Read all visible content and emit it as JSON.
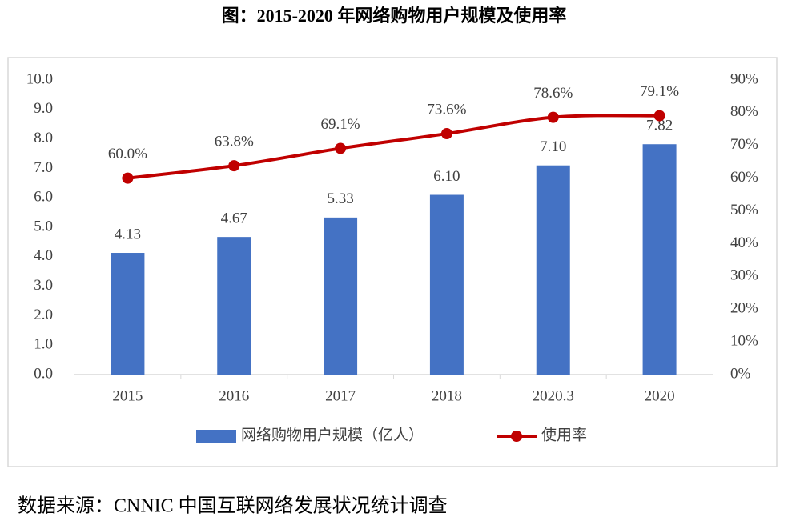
{
  "chart_data": {
    "type": "bar-line",
    "title": "图：2015-2020 年网络购物用户规模及使用率",
    "source": "数据来源：CNNIC 中国互联网络发展状况统计调查",
    "categories": [
      "2015",
      "2016",
      "2017",
      "2018",
      "2020.3",
      "2020"
    ],
    "series": [
      {
        "name": "网络购物用户规模（亿人）",
        "type": "bar",
        "color": "#4472c4",
        "values": [
          4.13,
          4.67,
          5.33,
          6.1,
          7.1,
          7.82
        ],
        "value_labels": [
          "4.13",
          "4.67",
          "5.33",
          "6.10",
          "7.10",
          "7.82"
        ]
      },
      {
        "name": "使用率",
        "type": "line",
        "axis": "y2",
        "color": "#c00000",
        "values": [
          60.0,
          63.8,
          69.1,
          73.6,
          78.6,
          79.1
        ],
        "value_labels": [
          "60.0%",
          "63.8%",
          "69.1%",
          "73.6%",
          "78.6%",
          "79.1%"
        ]
      }
    ],
    "ylim": [
      0,
      10
    ],
    "yticks": [
      {
        "value": 0,
        "label": "0.0"
      },
      {
        "value": 1,
        "label": "1.0"
      },
      {
        "value": 2,
        "label": "2.0"
      },
      {
        "value": 3,
        "label": "3.0"
      },
      {
        "value": 4,
        "label": "4.0"
      },
      {
        "value": 5,
        "label": "5.0"
      },
      {
        "value": 6,
        "label": "6.0"
      },
      {
        "value": 7,
        "label": "7.0"
      },
      {
        "value": 8,
        "label": "8.0"
      },
      {
        "value": 9,
        "label": "9.0"
      },
      {
        "value": 10,
        "label": "10.0"
      }
    ],
    "y2lim": [
      0,
      90
    ],
    "y2ticks": [
      {
        "value": 0,
        "label": "0%"
      },
      {
        "value": 10,
        "label": "10%"
      },
      {
        "value": 20,
        "label": "20%"
      },
      {
        "value": 30,
        "label": "30%"
      },
      {
        "value": 40,
        "label": "40%"
      },
      {
        "value": 50,
        "label": "50%"
      },
      {
        "value": 60,
        "label": "60%"
      },
      {
        "value": 70,
        "label": "70%"
      },
      {
        "value": 80,
        "label": "80%"
      },
      {
        "value": 90,
        "label": "90%"
      }
    ],
    "legend": "bottom"
  }
}
